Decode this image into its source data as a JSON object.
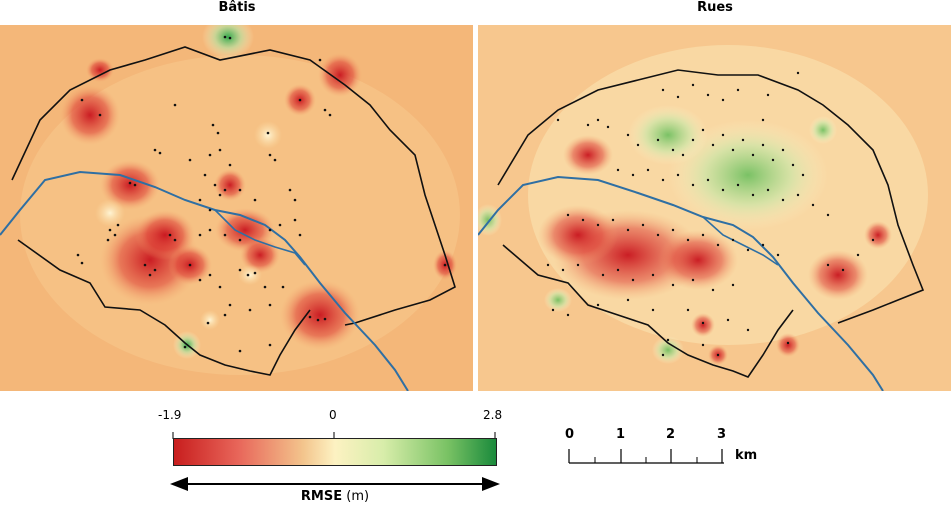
{
  "panels": [
    {
      "title": "Bâtis"
    },
    {
      "title": "Rues"
    }
  ],
  "legend": {
    "min_label": "-1.9",
    "mid_label": "0",
    "max_label": "2.8",
    "quantity": "RMSE",
    "unit": "(m)",
    "colors": {
      "low": "#c81e1e",
      "mid": "#fdf2c2",
      "high": "#1a8a3c"
    }
  },
  "scale_bar": {
    "ticks": [
      "0",
      "1",
      "2",
      "3"
    ],
    "unit": "km"
  },
  "styles": {
    "river": "#2f6fa3",
    "boundary": "#111111",
    "background": "#f4b779"
  }
}
